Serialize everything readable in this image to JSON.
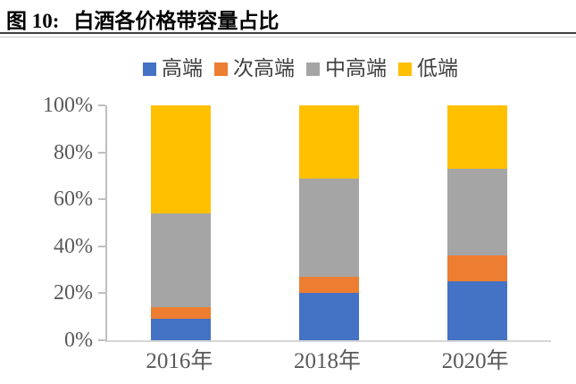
{
  "figure": {
    "label": "图 10:",
    "title": "白酒各价格带容量占比"
  },
  "chart_data": {
    "type": "bar",
    "subtype": "stacked-100-percent",
    "title": "白酒各价格带容量占比",
    "categories": [
      "2016年",
      "2018年",
      "2020年"
    ],
    "series": [
      {
        "name": "高端",
        "color": "#4472C4",
        "values": [
          9,
          20,
          25
        ]
      },
      {
        "name": "次高端",
        "color": "#ED7D31",
        "values": [
          5,
          7,
          11
        ]
      },
      {
        "name": "中高端",
        "color": "#A5A5A5",
        "values": [
          40,
          42,
          37
        ]
      },
      {
        "name": "低端",
        "color": "#FFC000",
        "values": [
          46,
          31,
          27
        ]
      }
    ],
    "value_unit": "%",
    "xlabel": "",
    "ylabel": "",
    "ylim": [
      0,
      100
    ],
    "ytick_labels": [
      "0%",
      "20%",
      "40%",
      "60%",
      "80%",
      "100%"
    ],
    "legend_position": "top",
    "grid": false
  },
  "colors": {
    "axis_line": "#BFBFBF",
    "baseline": "#D6D6D6",
    "tick_text": "#595959",
    "divider": "#3F3F3F",
    "title_text": "#000000"
  }
}
